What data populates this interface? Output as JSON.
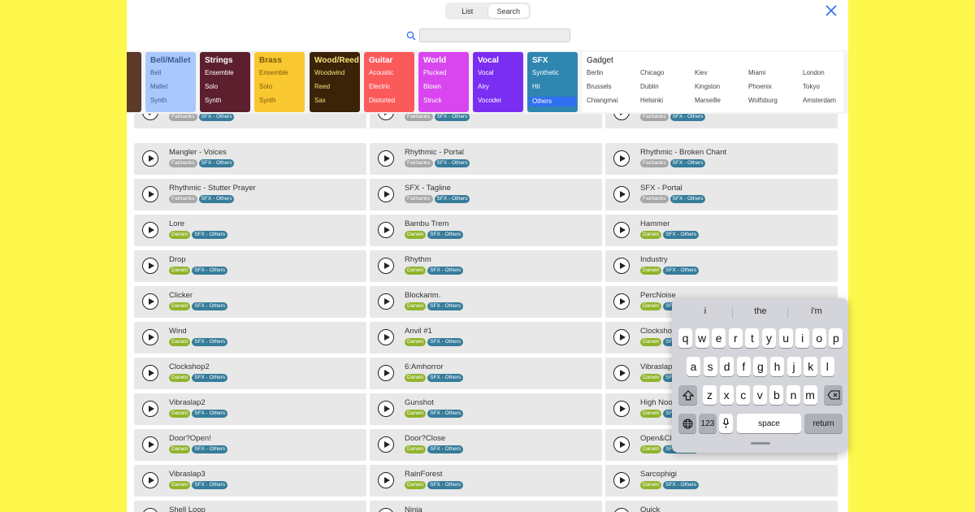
{
  "header": {
    "segments": [
      {
        "label": "List",
        "active": false
      },
      {
        "label": "Search",
        "active": true
      }
    ],
    "close_icon": "close-icon",
    "search": {
      "value": "",
      "placeholder": "",
      "icon": "search-icon"
    }
  },
  "categories": [
    {
      "title": "",
      "items": [],
      "bg": "#5b3a29",
      "color": "#ffffff",
      "partial": true
    },
    {
      "title": "Bell/Mallet",
      "items": [
        "Bell",
        "Mallet",
        "Synth"
      ],
      "bg": "#a9c8fb",
      "color": "#3f5b95"
    },
    {
      "title": "Strings",
      "items": [
        "Ensemble",
        "Solo",
        "Synth"
      ],
      "bg": "#5d1f2e",
      "color": "#ffffff"
    },
    {
      "title": "Brass",
      "items": [
        "Ensemble",
        "Solo",
        "Synth"
      ],
      "bg": "#f9c72f",
      "color": "#7a5a06"
    },
    {
      "title": "Wood/Reed",
      "items": [
        "Woodwind",
        "Reed",
        "Sax"
      ],
      "bg": "#3a2309",
      "color": "#f5e27a"
    },
    {
      "title": "Guitar",
      "items": [
        "Acoustic",
        "Electric",
        "Distorted"
      ],
      "bg": "#fb5a5a",
      "color": "#ffffff"
    },
    {
      "title": "World",
      "items": [
        "Plucked",
        "Blown",
        "Struck"
      ],
      "bg": "#d946ef",
      "color": "#ffffff"
    },
    {
      "title": "Vocal",
      "items": [
        "Vocal",
        "Airy",
        "Vocoder"
      ],
      "bg": "#7a2ef2",
      "color": "#ffffff"
    },
    {
      "title": "SFX",
      "items": [
        "Synthetic",
        "Hit",
        "Others"
      ],
      "bg": "#2f86b0",
      "color": "#ffffff",
      "highlight_index": 2
    }
  ],
  "gadget": {
    "title": "Gadget",
    "items": [
      "Berlin",
      "Chicago",
      "Kiev",
      "Miami",
      "London",
      "Brussels",
      "Dublin",
      "Kingston",
      "Phoenix",
      "Tokyo",
      "Chiangmai",
      "Helsinki",
      "Marseille",
      "Wolfsburg",
      "Amsterdam"
    ]
  },
  "grid": {
    "columns": 3,
    "rows": [
      {
        "partial": true,
        "cells": [
          {
            "title": "",
            "tags": [
              {
                "label": "Fairbanks",
                "kind": "fairbanks"
              },
              {
                "label": "SFX - Others",
                "kind": "sfx"
              }
            ]
          },
          {
            "title": "",
            "tags": [
              {
                "label": "Fairbanks",
                "kind": "fairbanks"
              },
              {
                "label": "SFX - Others",
                "kind": "sfx"
              }
            ]
          },
          {
            "title": "",
            "tags": [
              {
                "label": "Fairbanks",
                "kind": "fairbanks"
              },
              {
                "label": "SFX - Others",
                "kind": "sfx"
              }
            ]
          }
        ]
      },
      {
        "cells": [
          {
            "title": "Mangler - Voices",
            "tags": [
              {
                "label": "Fairbanks",
                "kind": "fairbanks"
              },
              {
                "label": "SFX - Others",
                "kind": "sfx"
              }
            ]
          },
          {
            "title": "Rhythmic - Portal",
            "tags": [
              {
                "label": "Fairbanks",
                "kind": "fairbanks"
              },
              {
                "label": "SFX - Others",
                "kind": "sfx"
              }
            ]
          },
          {
            "title": "Rhythmic - Broken Chant",
            "tags": [
              {
                "label": "Fairbanks",
                "kind": "fairbanks"
              },
              {
                "label": "SFX - Others",
                "kind": "sfx"
              }
            ]
          }
        ]
      },
      {
        "cells": [
          {
            "title": "Rhythmic - Stutter Prayer",
            "tags": [
              {
                "label": "Fairbanks",
                "kind": "fairbanks"
              },
              {
                "label": "SFX - Others",
                "kind": "sfx"
              }
            ]
          },
          {
            "title": "SFX - Tagline",
            "tags": [
              {
                "label": "Fairbanks",
                "kind": "fairbanks"
              },
              {
                "label": "SFX - Others",
                "kind": "sfx"
              }
            ]
          },
          {
            "title": "SFX - Portal",
            "tags": [
              {
                "label": "Fairbanks",
                "kind": "fairbanks"
              },
              {
                "label": "SFX - Others",
                "kind": "sfx"
              }
            ]
          }
        ]
      },
      {
        "cells": [
          {
            "title": "Lore",
            "tags": [
              {
                "label": "Darwin",
                "kind": "darwin"
              },
              {
                "label": "SFX - Others",
                "kind": "sfx"
              }
            ]
          },
          {
            "title": "Bambu Trem",
            "tags": [
              {
                "label": "Darwin",
                "kind": "darwin"
              },
              {
                "label": "SFX - Others",
                "kind": "sfx"
              }
            ]
          },
          {
            "title": "Hammer",
            "tags": [
              {
                "label": "Darwin",
                "kind": "darwin"
              },
              {
                "label": "SFX - Others",
                "kind": "sfx"
              }
            ]
          }
        ]
      },
      {
        "cells": [
          {
            "title": "Drop",
            "tags": [
              {
                "label": "Darwin",
                "kind": "darwin"
              },
              {
                "label": "SFX - Others",
                "kind": "sfx"
              }
            ]
          },
          {
            "title": "Rhythm",
            "tags": [
              {
                "label": "Darwin",
                "kind": "darwin"
              },
              {
                "label": "SFX - Others",
                "kind": "sfx"
              }
            ]
          },
          {
            "title": "Industry",
            "tags": [
              {
                "label": "Darwin",
                "kind": "darwin"
              },
              {
                "label": "SFX - Others",
                "kind": "sfx"
              }
            ]
          }
        ]
      },
      {
        "cells": [
          {
            "title": "Clicker",
            "tags": [
              {
                "label": "Darwin",
                "kind": "darwin"
              },
              {
                "label": "SFX - Others",
                "kind": "sfx"
              }
            ]
          },
          {
            "title": "Blockarim.",
            "tags": [
              {
                "label": "Darwin",
                "kind": "darwin"
              },
              {
                "label": "SFX - Others",
                "kind": "sfx"
              }
            ]
          },
          {
            "title": "PercNoise",
            "tags": [
              {
                "label": "Darwin",
                "kind": "darwin"
              },
              {
                "label": "SFX - Others",
                "kind": "sfx"
              }
            ]
          }
        ]
      },
      {
        "cells": [
          {
            "title": "Wind",
            "tags": [
              {
                "label": "Darwin",
                "kind": "darwin"
              },
              {
                "label": "SFX - Others",
                "kind": "sfx"
              }
            ]
          },
          {
            "title": "Anvil #1",
            "tags": [
              {
                "label": "Darwin",
                "kind": "darwin"
              },
              {
                "label": "SFX - Others",
                "kind": "sfx"
              }
            ]
          },
          {
            "title": "Clockshop",
            "tags": [
              {
                "label": "Darwin",
                "kind": "darwin"
              },
              {
                "label": "SFX - Others",
                "kind": "sfx"
              }
            ]
          }
        ]
      },
      {
        "cells": [
          {
            "title": "Clockshop2",
            "tags": [
              {
                "label": "Darwin",
                "kind": "darwin"
              },
              {
                "label": "SFX - Others",
                "kind": "sfx"
              }
            ]
          },
          {
            "title": "6:Amhorror",
            "tags": [
              {
                "label": "Darwin",
                "kind": "darwin"
              },
              {
                "label": "SFX - Others",
                "kind": "sfx"
              }
            ]
          },
          {
            "title": "Vibraslap",
            "tags": [
              {
                "label": "Darwin",
                "kind": "darwin"
              },
              {
                "label": "SFX - Others",
                "kind": "sfx"
              }
            ]
          }
        ]
      },
      {
        "cells": [
          {
            "title": "Vibraslap2",
            "tags": [
              {
                "label": "Darwin",
                "kind": "darwin"
              },
              {
                "label": "SFX - Others",
                "kind": "sfx"
              }
            ]
          },
          {
            "title": "Gunshot",
            "tags": [
              {
                "label": "Darwin",
                "kind": "darwin"
              },
              {
                "label": "SFX - Others",
                "kind": "sfx"
              }
            ]
          },
          {
            "title": "High Noon",
            "tags": [
              {
                "label": "Darwin",
                "kind": "darwin"
              },
              {
                "label": "SFX - Others",
                "kind": "sfx"
              }
            ]
          }
        ]
      },
      {
        "cells": [
          {
            "title": "Door?Open!",
            "tags": [
              {
                "label": "Darwin",
                "kind": "darwin"
              },
              {
                "label": "SFX - Others",
                "kind": "sfx"
              }
            ]
          },
          {
            "title": "Door?Close",
            "tags": [
              {
                "label": "Darwin",
                "kind": "darwin"
              },
              {
                "label": "SFX - Others",
                "kind": "sfx"
              }
            ]
          },
          {
            "title": "Open&Close",
            "tags": [
              {
                "label": "Darwin",
                "kind": "darwin"
              },
              {
                "label": "SFX - Others",
                "kind": "sfx"
              }
            ]
          }
        ]
      },
      {
        "cells": [
          {
            "title": "Vibraslap3",
            "tags": [
              {
                "label": "Darwin",
                "kind": "darwin"
              },
              {
                "label": "SFX - Others",
                "kind": "sfx"
              }
            ]
          },
          {
            "title": "RainForest",
            "tags": [
              {
                "label": "Darwin",
                "kind": "darwin"
              },
              {
                "label": "SFX - Others",
                "kind": "sfx"
              }
            ]
          },
          {
            "title": "Sarcophigi",
            "tags": [
              {
                "label": "Darwin",
                "kind": "darwin"
              },
              {
                "label": "SFX - Others",
                "kind": "sfx"
              }
            ]
          }
        ]
      },
      {
        "cells": [
          {
            "title": "Shell Loop",
            "tags": []
          },
          {
            "title": "Ninja",
            "tags": []
          },
          {
            "title": "Quick",
            "tags": []
          }
        ]
      }
    ]
  },
  "keyboard": {
    "suggestions": [
      "i",
      "the",
      "i'm"
    ],
    "row1": [
      "q",
      "w",
      "e",
      "r",
      "t",
      "y",
      "u",
      "i",
      "o",
      "p"
    ],
    "row2": [
      "a",
      "s",
      "d",
      "f",
      "g",
      "h",
      "j",
      "k",
      "l"
    ],
    "row3": [
      "z",
      "x",
      "c",
      "v",
      "b",
      "n",
      "m"
    ],
    "numbers_label": "123",
    "space_label": "space",
    "return_label": "return",
    "shift_icon": "shift-icon",
    "delete_icon": "delete-icon",
    "globe_icon": "globe-icon",
    "mic_icon": "microphone-icon"
  },
  "colors": {
    "page_bg": "#fdf84b",
    "card_bg": "#e8e8e8",
    "accent": "#2f6ff0",
    "tag_fairbanks": "#a7a7a7",
    "tag_darwin": "#91b42c",
    "tag_sfx": "#367c9b"
  }
}
